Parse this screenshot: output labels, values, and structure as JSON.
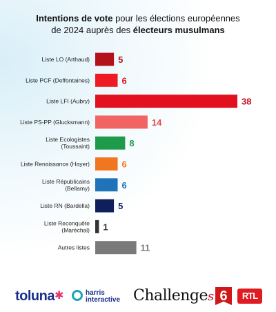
{
  "title": {
    "part1_bold": "Intentions de vote",
    "part1_rest": " pour les élections européennes",
    "part2_plain": "de 2024 auprès des ",
    "part2_bold": "électeurs musulmans"
  },
  "chart_data": {
    "type": "bar",
    "orientation": "horizontal",
    "categories": [
      "Liste LO (Arthaud)",
      "Liste PCF (Deffontaines)",
      "Liste LFI (Aubry)",
      "Liste PS-PP (Glucksmann)",
      "Liste Ecologistes\n(Toussaint)",
      "Liste Renaissance (Hayer)",
      "Liste Républicains\n(Bellamy)",
      "Liste RN (Bardella)",
      "Liste Reconquête\n(Maréchal)",
      "Autres listes"
    ],
    "values": [
      5,
      6,
      38,
      14,
      8,
      6,
      6,
      5,
      1,
      11
    ],
    "bar_colors": [
      "#b3121b",
      "#ee1b24",
      "#e3101f",
      "#f26363",
      "#1e9b4a",
      "#f07620",
      "#1f73b8",
      "#0f1f5c",
      "#333333",
      "#7a7a7a"
    ],
    "label_colors": [
      "#b3121b",
      "#e0161f",
      "#c40f1b",
      "#e84a4a",
      "#1e9b4a",
      "#f07620",
      "#1f73b8",
      "#0f1f5c",
      "#333333",
      "#7a7a7a"
    ],
    "xlim": [
      0,
      38
    ],
    "legend": "none",
    "grid": false
  },
  "logos": {
    "toluna": "toluna",
    "harris_line1": "harris",
    "harris_line2": "interactive",
    "challenges": "Challenge",
    "challenges_s": "s",
    "m6": "6",
    "rtl": "RTL"
  }
}
